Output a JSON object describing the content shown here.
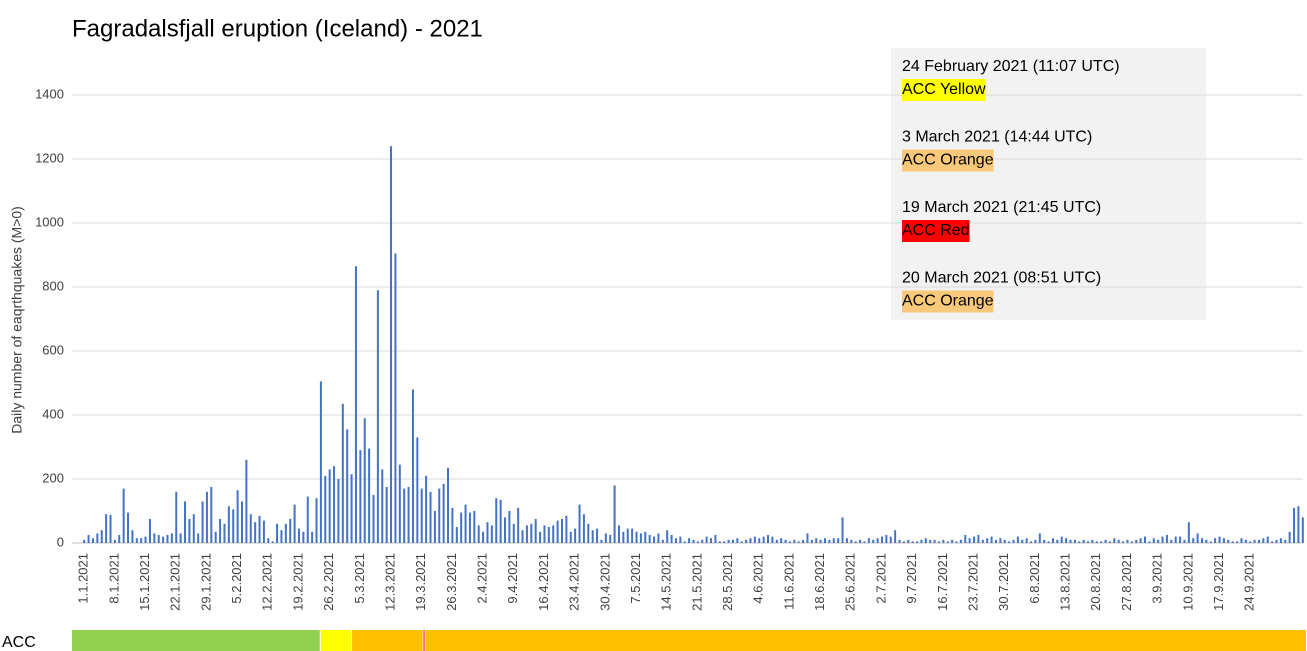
{
  "chart_data": {
    "type": "bar",
    "title": "Fagradalsfjall eruption (Iceland) - 2021",
    "y_label": "Daily number of eaqrthquakes (M>0)",
    "categories": [
      "1.1.2021",
      null,
      null,
      null,
      null,
      null,
      null,
      "8.1.2021",
      null,
      null,
      null,
      null,
      null,
      null,
      "15.1.2021",
      null,
      null,
      null,
      null,
      null,
      null,
      "22.1.2021",
      null,
      null,
      null,
      null,
      null,
      null,
      "29.1.2021",
      null,
      null,
      null,
      null,
      null,
      null,
      "5.2.2021",
      null,
      null,
      null,
      null,
      null,
      null,
      "12.2.2021",
      null,
      null,
      null,
      null,
      null,
      null,
      "19.2.2021",
      null,
      null,
      null,
      null,
      null,
      null,
      "26.2.2021",
      null,
      null,
      null,
      null,
      null,
      null,
      "5.3.2021",
      null,
      null,
      null,
      null,
      null,
      null,
      "12.3.2021",
      null,
      null,
      null,
      null,
      null,
      null,
      "19.3.2021",
      null,
      null,
      null,
      null,
      null,
      null,
      "26.3.2021",
      null,
      null,
      null,
      null,
      null,
      null,
      "2.4.2021",
      null,
      null,
      null,
      null,
      null,
      null,
      "9.4.2021",
      null,
      null,
      null,
      null,
      null,
      null,
      "16.4.2021",
      null,
      null,
      null,
      null,
      null,
      null,
      "23.4.2021",
      null,
      null,
      null,
      null,
      null,
      null,
      "30.4.2021",
      null,
      null,
      null,
      null,
      null,
      null,
      "7.5.2021",
      null,
      null,
      null,
      null,
      null,
      null,
      "14.5.2021",
      null,
      null,
      null,
      null,
      null,
      null,
      "21.5.2021",
      null,
      null,
      null,
      null,
      null,
      null,
      "28.5.2021",
      null,
      null,
      null,
      null,
      null,
      null,
      "4.6.2021",
      null,
      null,
      null,
      null,
      null,
      null,
      "11.6.2021",
      null,
      null,
      null,
      null,
      null,
      null,
      "18.6.2021",
      null,
      null,
      null,
      null,
      null,
      null,
      "25.6.2021",
      null,
      null,
      null,
      null,
      null,
      null,
      "2.7.2021",
      null,
      null,
      null,
      null,
      null,
      null,
      "9.7.2021",
      null,
      null,
      null,
      null,
      null,
      null,
      "16.7.2021",
      null,
      null,
      null,
      null,
      null,
      null,
      "23.7.2021",
      null,
      null,
      null,
      null,
      null,
      null,
      "30.7.2021",
      null,
      null,
      null,
      null,
      null,
      null,
      "6.8.2021",
      null,
      null,
      null,
      null,
      null,
      null,
      "13.8.2021",
      null,
      null,
      null,
      null,
      null,
      null,
      "20.8.2021",
      null,
      null,
      null,
      null,
      null,
      null,
      "27.8.2021",
      null,
      null,
      null,
      null,
      null,
      null,
      "3.9.2021",
      null,
      null,
      null,
      null,
      null,
      null,
      "10.9.2021",
      null,
      null,
      null,
      null,
      null,
      null,
      "17.9.2021",
      null,
      null,
      null,
      null,
      null,
      null,
      "24.9.2021",
      null,
      null,
      null,
      null,
      null,
      null,
      null,
      null,
      null,
      null,
      null,
      null
    ],
    "values": [
      10,
      25,
      15,
      30,
      40,
      90,
      88,
      10,
      25,
      170,
      95,
      40,
      15,
      15,
      20,
      75,
      30,
      25,
      20,
      25,
      30,
      160,
      30,
      130,
      75,
      90,
      30,
      130,
      160,
      175,
      35,
      75,
      60,
      115,
      105,
      165,
      130,
      260,
      90,
      65,
      85,
      70,
      15,
      5,
      60,
      40,
      60,
      75,
      120,
      45,
      35,
      145,
      35,
      140,
      505,
      210,
      230,
      240,
      200,
      435,
      355,
      215,
      865,
      290,
      390,
      295,
      150,
      790,
      230,
      175,
      1240,
      905,
      245,
      170,
      175,
      480,
      330,
      170,
      210,
      160,
      100,
      170,
      185,
      235,
      110,
      50,
      95,
      120,
      95,
      100,
      55,
      35,
      65,
      55,
      140,
      135,
      80,
      100,
      60,
      110,
      40,
      55,
      60,
      75,
      35,
      55,
      50,
      55,
      70,
      75,
      85,
      35,
      45,
      120,
      90,
      60,
      40,
      45,
      10,
      30,
      25,
      180,
      55,
      35,
      45,
      45,
      35,
      30,
      35,
      25,
      20,
      30,
      10,
      40,
      25,
      15,
      20,
      5,
      15,
      10,
      5,
      10,
      20,
      15,
      25,
      5,
      5,
      10,
      10,
      15,
      5,
      10,
      15,
      20,
      15,
      20,
      25,
      20,
      10,
      15,
      10,
      5,
      10,
      5,
      10,
      30,
      10,
      15,
      10,
      15,
      10,
      15,
      15,
      80,
      15,
      10,
      5,
      10,
      5,
      15,
      10,
      15,
      20,
      25,
      20,
      40,
      10,
      5,
      10,
      5,
      5,
      10,
      15,
      10,
      10,
      5,
      10,
      5,
      10,
      5,
      10,
      25,
      15,
      20,
      25,
      10,
      15,
      20,
      10,
      15,
      10,
      5,
      10,
      20,
      10,
      15,
      5,
      10,
      30,
      10,
      5,
      15,
      10,
      20,
      15,
      10,
      10,
      5,
      10,
      5,
      10,
      5,
      5,
      10,
      5,
      15,
      10,
      5,
      10,
      5,
      10,
      15,
      20,
      5,
      15,
      10,
      20,
      25,
      10,
      20,
      20,
      10,
      65,
      15,
      30,
      15,
      10,
      5,
      15,
      20,
      15,
      10,
      5,
      5,
      15,
      10,
      5,
      10,
      10,
      15,
      20,
      5,
      10,
      15,
      10,
      35,
      110,
      115,
      80
    ],
    "color": "#4472c4",
    "ylim": [
      0,
      1400
    ],
    "yticks": [
      0,
      200,
      400,
      600,
      800,
      1000,
      1200,
      1400
    ],
    "grid": true,
    "annotations": [
      {
        "date": "24 February 2021 (11:07 UTC)",
        "level": "ACC Yellow",
        "color": "#ffff00",
        "bar_color": "#ffff00",
        "start": 54.46
      },
      {
        "date": "3 March 2021 (14:44 UTC)",
        "level": "ACC Orange",
        "color": "#f8c97a",
        "bar_color": "#ffc000",
        "start": 61.61
      },
      {
        "date": "19 March 2021 (21:45 UTC)",
        "level": "ACC Red",
        "color": "#ff0000",
        "bar_color": "#ff0000",
        "start": 77.91
      },
      {
        "date": "20 March 2021 (08:51 UTC)",
        "level": "ACC Orange",
        "color": "#f8c97a",
        "bar_color": "#ffc000",
        "start": 78.37
      }
    ],
    "acc": {
      "label": "ACC",
      "initial_color": "#92d050"
    }
  }
}
